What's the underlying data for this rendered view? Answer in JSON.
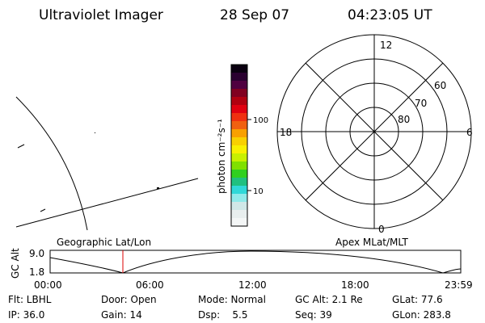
{
  "header": {
    "instrument": "Ultraviolet Imager",
    "date": "28 Sep 07",
    "time": "04:23:05 UT"
  },
  "colorbar": {
    "label": "photon cm⁻²s⁻¹",
    "ticks": [
      "100",
      "10"
    ]
  },
  "polar": {
    "mlt_labels": [
      "12",
      "6",
      "0",
      "18"
    ],
    "lat_labels": [
      "60",
      "70",
      "80"
    ]
  },
  "timeline": {
    "left_title": "Geographic Lat/Lon",
    "right_title": "Apex MLat/MLT",
    "axis_label": "GC Alt",
    "y_labels": [
      "9.0",
      "1.8"
    ],
    "x_labels": [
      "00:00",
      "06:00",
      "12:00",
      "18:00",
      "23:59"
    ]
  },
  "info": {
    "rows": [
      [
        "Flt: LBHL",
        "Door: Open",
        "Mode: Normal",
        "GC Alt: 2.1 Re",
        "GLat: 77.6"
      ],
      [
        "IP: 36.0",
        "Gain: 14",
        "Dsp:    5.5",
        "Seq: 39",
        "GLon: 283.8"
      ]
    ]
  }
}
